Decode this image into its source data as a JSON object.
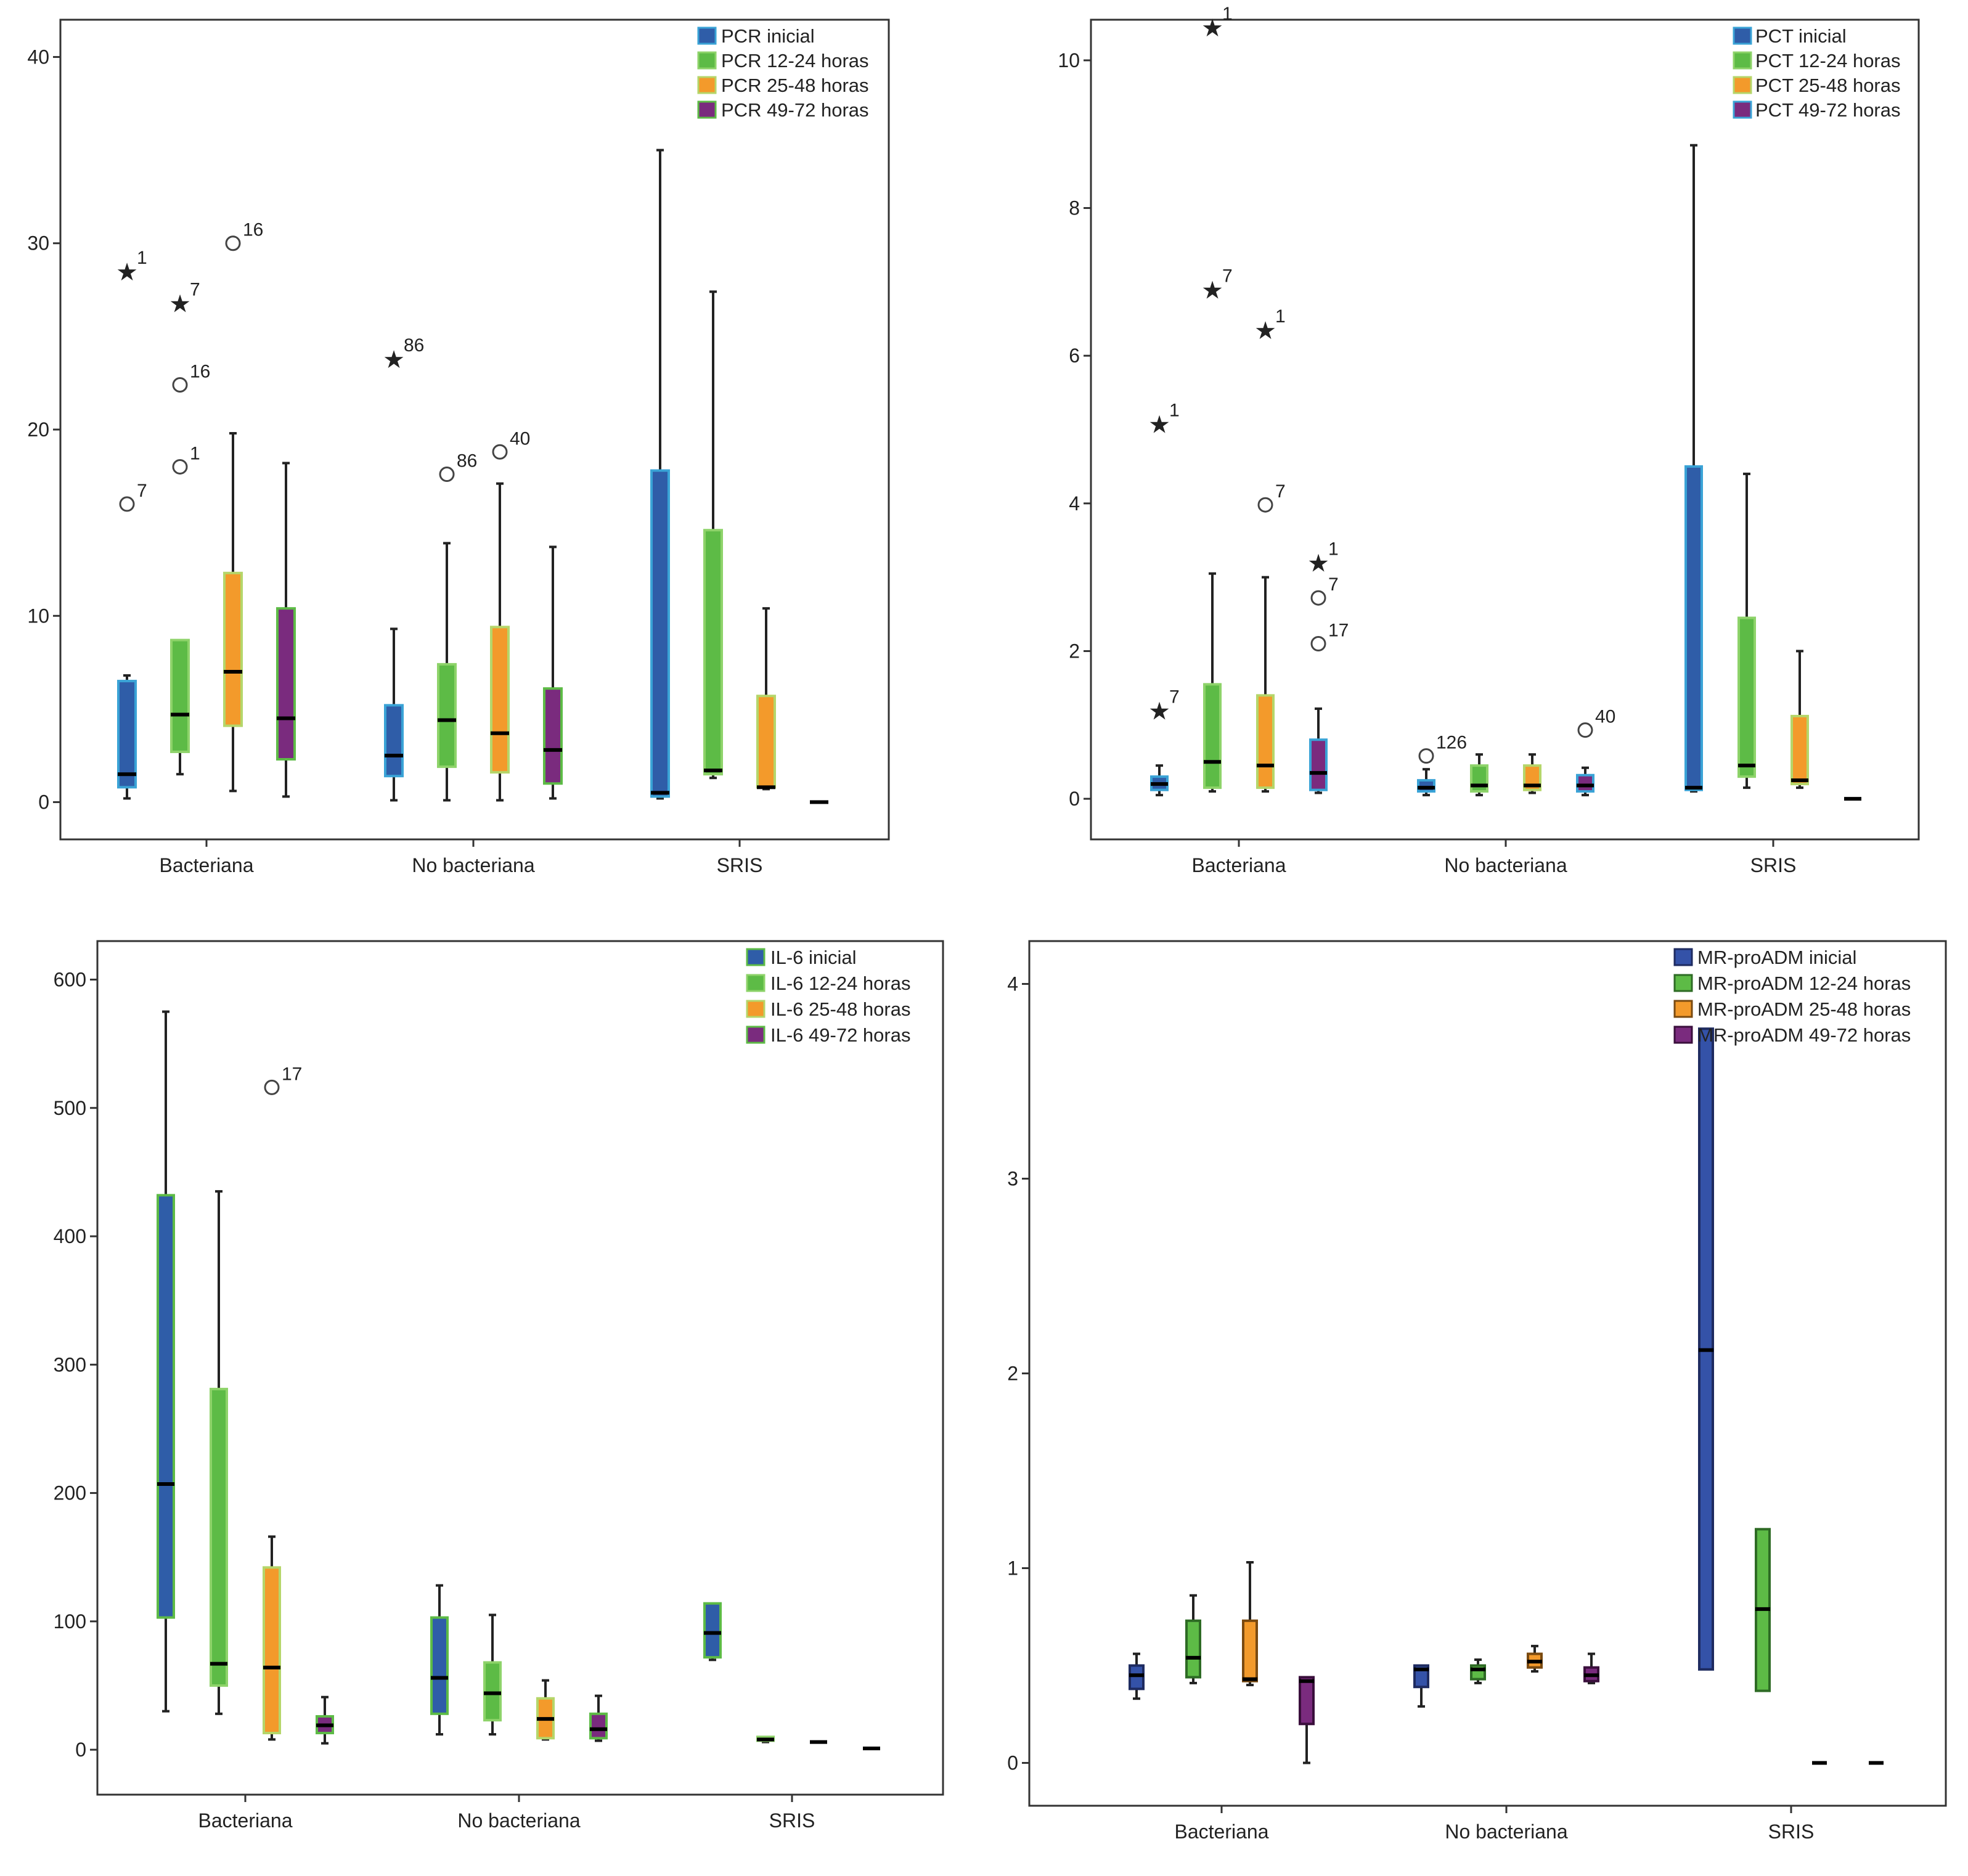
{
  "chart_data": [
    {
      "type": "boxplot",
      "categories": [
        "Bacteriana",
        "No bacteriana",
        "SRIS"
      ],
      "ylim": [
        -2,
        42
      ],
      "yticks": [
        0,
        10,
        20,
        30,
        40
      ],
      "legend_position": "top-right",
      "series": [
        {
          "name": "PCR inicial",
          "color": "#2F5DA8",
          "border": "#3AA3D6",
          "boxes": [
            {
              "category": "Bacteriana",
              "min": 0.2,
              "q1": 0.8,
              "median": 1.5,
              "q3": 6.5,
              "max": 6.8
            },
            {
              "category": "No bacteriana",
              "min": 0.1,
              "q1": 1.4,
              "median": 2.5,
              "q3": 5.2,
              "max": 9.3
            },
            {
              "category": "SRIS",
              "min": 0.2,
              "q1": 0.3,
              "median": 0.5,
              "q3": 17.8,
              "max": 35.0
            }
          ]
        },
        {
          "name": "PCR 12-24 horas",
          "color": "#5DBB46",
          "border": "#8ED36A",
          "boxes": [
            {
              "category": "Bacteriana",
              "min": 1.5,
              "q1": 2.7,
              "median": 4.7,
              "q3": 8.7,
              "max": 8.7
            },
            {
              "category": "No bacteriana",
              "min": 0.1,
              "q1": 1.9,
              "median": 4.4,
              "q3": 7.4,
              "max": 13.9
            },
            {
              "category": "SRIS",
              "min": 1.3,
              "q1": 1.5,
              "median": 1.7,
              "q3": 14.6,
              "max": 27.4
            }
          ]
        },
        {
          "name": "PCR 25-48 horas",
          "color": "#F39A2B",
          "border": "#B5D66A",
          "boxes": [
            {
              "category": "Bacteriana",
              "min": 0.6,
              "q1": 4.1,
              "median": 7.0,
              "q3": 12.3,
              "max": 19.8
            },
            {
              "category": "No bacteriana",
              "min": 0.1,
              "q1": 1.6,
              "median": 3.7,
              "q3": 9.4,
              "max": 17.1
            },
            {
              "category": "SRIS",
              "min": 0.7,
              "q1": 0.8,
              "median": 0.8,
              "q3": 5.7,
              "max": 10.4
            }
          ]
        },
        {
          "name": "PCR 49-72 horas",
          "color": "#7A2B7E",
          "border": "#5DBB46",
          "boxes": [
            {
              "category": "Bacteriana",
              "min": 0.3,
              "q1": 2.3,
              "median": 4.5,
              "q3": 10.4,
              "max": 18.2
            },
            {
              "category": "No bacteriana",
              "min": 0.2,
              "q1": 1.0,
              "median": 2.8,
              "q3": 6.1,
              "max": 13.7
            },
            {
              "category": "SRIS",
              "min": 0.0,
              "q1": 0.0,
              "median": 0.0,
              "q3": 0.0,
              "max": 0.0
            }
          ]
        }
      ],
      "outliers": [
        {
          "series": 0,
          "category": "Bacteriana",
          "value": 28.5,
          "label": "1",
          "marker": "star"
        },
        {
          "series": 0,
          "category": "Bacteriana",
          "value": 16.0,
          "label": "7",
          "marker": "circle"
        },
        {
          "series": 1,
          "category": "Bacteriana",
          "value": 26.8,
          "label": "7",
          "marker": "star"
        },
        {
          "series": 1,
          "category": "Bacteriana",
          "value": 22.4,
          "label": "16",
          "marker": "circle"
        },
        {
          "series": 1,
          "category": "Bacteriana",
          "value": 18.0,
          "label": "1",
          "marker": "circle"
        },
        {
          "series": 2,
          "category": "Bacteriana",
          "value": 30.0,
          "label": "16",
          "marker": "circle"
        },
        {
          "series": 0,
          "category": "No bacteriana",
          "value": 23.8,
          "label": "86",
          "marker": "star"
        },
        {
          "series": 1,
          "category": "No bacteriana",
          "value": 17.6,
          "label": "86",
          "marker": "circle"
        },
        {
          "series": 2,
          "category": "No bacteriana",
          "value": 18.8,
          "label": "40",
          "marker": "circle"
        }
      ]
    },
    {
      "type": "boxplot",
      "categories": [
        "Bacteriana",
        "No bacteriana",
        "SRIS"
      ],
      "ylim": [
        -0.55,
        10.55
      ],
      "yticks": [
        0,
        2,
        4,
        6,
        8,
        10
      ],
      "legend_position": "top-right",
      "series": [
        {
          "name": "PCT inicial",
          "color": "#2F5DA8",
          "border": "#3AA3D6",
          "boxes": [
            {
              "category": "Bacteriana",
              "min": 0.05,
              "q1": 0.12,
              "median": 0.2,
              "q3": 0.3,
              "max": 0.45
            },
            {
              "category": "No bacteriana",
              "min": 0.05,
              "q1": 0.1,
              "median": 0.15,
              "q3": 0.25,
              "max": 0.4
            },
            {
              "category": "SRIS",
              "min": 0.1,
              "q1": 0.12,
              "median": 0.15,
              "q3": 4.5,
              "max": 8.85
            }
          ]
        },
        {
          "name": "PCT 12-24 horas",
          "color": "#5DBB46",
          "border": "#8ED36A",
          "boxes": [
            {
              "category": "Bacteriana",
              "min": 0.1,
              "q1": 0.15,
              "median": 0.5,
              "q3": 1.55,
              "max": 3.05
            },
            {
              "category": "No bacteriana",
              "min": 0.05,
              "q1": 0.1,
              "median": 0.18,
              "q3": 0.45,
              "max": 0.6
            },
            {
              "category": "SRIS",
              "min": 0.15,
              "q1": 0.3,
              "median": 0.45,
              "q3": 2.45,
              "max": 4.4
            }
          ]
        },
        {
          "name": "PCT 25-48 horas",
          "color": "#F39A2B",
          "border": "#B5D66A",
          "boxes": [
            {
              "category": "Bacteriana",
              "min": 0.1,
              "q1": 0.15,
              "median": 0.45,
              "q3": 1.4,
              "max": 3.0
            },
            {
              "category": "No bacteriana",
              "min": 0.08,
              "q1": 0.12,
              "median": 0.18,
              "q3": 0.45,
              "max": 0.6
            },
            {
              "category": "SRIS",
              "min": 0.15,
              "q1": 0.2,
              "median": 0.25,
              "q3": 1.12,
              "max": 2.0
            }
          ]
        },
        {
          "name": "PCT 49-72 horas",
          "color": "#7A2B7E",
          "border": "#3AA3D6",
          "boxes": [
            {
              "category": "Bacteriana",
              "min": 0.08,
              "q1": 0.12,
              "median": 0.35,
              "q3": 0.8,
              "max": 1.22
            },
            {
              "category": "No bacteriana",
              "min": 0.05,
              "q1": 0.1,
              "median": 0.18,
              "q3": 0.32,
              "max": 0.42
            },
            {
              "category": "SRIS",
              "min": 0.0,
              "q1": 0.0,
              "median": 0.0,
              "q3": 0.0,
              "max": 0.0
            }
          ]
        }
      ],
      "outliers": [
        {
          "series": 0,
          "category": "Bacteriana",
          "value": 5.08,
          "label": "1",
          "marker": "star"
        },
        {
          "series": 0,
          "category": "Bacteriana",
          "value": 1.2,
          "label": "7",
          "marker": "star"
        },
        {
          "series": 1,
          "category": "Bacteriana",
          "value": 10.45,
          "label": "1",
          "marker": "star"
        },
        {
          "series": 1,
          "category": "Bacteriana",
          "value": 6.9,
          "label": "7",
          "marker": "star"
        },
        {
          "series": 2,
          "category": "Bacteriana",
          "value": 6.35,
          "label": "1",
          "marker": "star"
        },
        {
          "series": 2,
          "category": "Bacteriana",
          "value": 3.98,
          "label": "7",
          "marker": "circle"
        },
        {
          "series": 3,
          "category": "Bacteriana",
          "value": 3.2,
          "label": "1",
          "marker": "star"
        },
        {
          "series": 3,
          "category": "Bacteriana",
          "value": 2.72,
          "label": "7",
          "marker": "circle"
        },
        {
          "series": 3,
          "category": "Bacteriana",
          "value": 2.1,
          "label": "17",
          "marker": "circle"
        },
        {
          "series": 0,
          "category": "No bacteriana",
          "value": 0.58,
          "label": "126",
          "marker": "circle"
        },
        {
          "series": 3,
          "category": "No bacteriana",
          "value": 0.93,
          "label": "40",
          "marker": "circle"
        }
      ]
    },
    {
      "type": "boxplot",
      "categories": [
        "Bacteriana",
        "No bacteriana",
        "SRIS"
      ],
      "ylim": [
        -35,
        630
      ],
      "yticks": [
        0,
        100,
        200,
        300,
        400,
        500,
        600
      ],
      "legend_position": "top-right",
      "series": [
        {
          "name": "IL-6 inicial",
          "color": "#2F5DA8",
          "border": "#5DBB46",
          "boxes": [
            {
              "category": "Bacteriana",
              "min": 30,
              "q1": 103,
              "median": 207,
              "q3": 432,
              "max": 575
            },
            {
              "category": "No bacteriana",
              "min": 12,
              "q1": 28,
              "median": 56,
              "q3": 103,
              "max": 128
            },
            {
              "category": "SRIS",
              "min": 70,
              "q1": 72,
              "median": 91,
              "q3": 114,
              "max": 114
            }
          ]
        },
        {
          "name": "IL-6 12-24 horas",
          "color": "#5DBB46",
          "border": "#8ED36A",
          "boxes": [
            {
              "category": "Bacteriana",
              "min": 28,
              "q1": 50,
              "median": 67,
              "q3": 281,
              "max": 435
            },
            {
              "category": "No bacteriana",
              "min": 12,
              "q1": 23,
              "median": 44,
              "q3": 68,
              "max": 105
            },
            {
              "category": "SRIS",
              "min": 6,
              "q1": 7,
              "median": 8,
              "q3": 10,
              "max": 10
            }
          ]
        },
        {
          "name": "IL-6 25-48 horas",
          "color": "#F39A2B",
          "border": "#B5D66A",
          "boxes": [
            {
              "category": "Bacteriana",
              "min": 8,
              "q1": 13,
              "median": 64,
              "q3": 142,
              "max": 166
            },
            {
              "category": "No bacteriana",
              "min": 8,
              "q1": 9,
              "median": 24,
              "q3": 40,
              "max": 54
            },
            {
              "category": "SRIS",
              "min": 6,
              "q1": 6,
              "median": 6,
              "q3": 6,
              "max": 6
            }
          ]
        },
        {
          "name": "IL-6 49-72 horas",
          "color": "#7A2B7E",
          "border": "#5DBB46",
          "boxes": [
            {
              "category": "Bacteriana",
              "min": 5,
              "q1": 13,
              "median": 19,
              "q3": 26,
              "max": 41
            },
            {
              "category": "No bacteriana",
              "min": 7,
              "q1": 9,
              "median": 16,
              "q3": 28,
              "max": 42
            },
            {
              "category": "SRIS",
              "min": 1,
              "q1": 1,
              "median": 1,
              "q3": 1,
              "max": 1
            }
          ]
        }
      ],
      "outliers": [
        {
          "series": 2,
          "category": "Bacteriana",
          "value": 516,
          "label": "17",
          "marker": "circle"
        }
      ]
    },
    {
      "type": "boxplot",
      "categories": [
        "Bacteriana",
        "No bacteriana",
        "SRIS"
      ],
      "ylim": [
        -0.22,
        4.22
      ],
      "yticks": [
        0,
        1,
        2,
        3,
        4
      ],
      "legend_position": "top-right",
      "series": [
        {
          "name": "MR-proADM inicial",
          "color": "#3452A8",
          "border": "#1E2B60",
          "boxes": [
            {
              "category": "Bacteriana",
              "min": 0.33,
              "q1": 0.38,
              "median": 0.45,
              "q3": 0.5,
              "max": 0.56
            },
            {
              "category": "No bacteriana",
              "min": 0.29,
              "q1": 0.39,
              "median": 0.48,
              "q3": 0.5,
              "max": 0.5
            },
            {
              "category": "SRIS",
              "min": 0.48,
              "q1": 0.48,
              "median": 2.12,
              "q3": 3.77,
              "max": 3.77
            }
          ]
        },
        {
          "name": "MR-proADM 12-24 horas",
          "color": "#5DBB46",
          "border": "#2E6B25",
          "boxes": [
            {
              "category": "Bacteriana",
              "min": 0.41,
              "q1": 0.44,
              "median": 0.54,
              "q3": 0.73,
              "max": 0.86
            },
            {
              "category": "No bacteriana",
              "min": 0.41,
              "q1": 0.43,
              "median": 0.48,
              "q3": 0.5,
              "max": 0.53
            },
            {
              "category": "SRIS",
              "min": 0.37,
              "q1": 0.37,
              "median": 0.79,
              "q3": 1.2,
              "max": 1.2
            }
          ]
        },
        {
          "name": "MR-proADM 25-48 horas",
          "color": "#F39A2B",
          "border": "#7A4A10",
          "boxes": [
            {
              "category": "Bacteriana",
              "min": 0.4,
              "q1": 0.42,
              "median": 0.43,
              "q3": 0.73,
              "max": 1.03
            },
            {
              "category": "No bacteriana",
              "min": 0.47,
              "q1": 0.49,
              "median": 0.52,
              "q3": 0.56,
              "max": 0.6
            },
            {
              "category": "SRIS",
              "min": 0.0,
              "q1": 0.0,
              "median": 0.0,
              "q3": 0.0,
              "max": 0.0
            }
          ]
        },
        {
          "name": "MR-proADM 49-72 horas",
          "color": "#7A2B7E",
          "border": "#3A0F3C",
          "boxes": [
            {
              "category": "Bacteriana",
              "min": 0.0,
              "q1": 0.2,
              "median": 0.42,
              "q3": 0.44,
              "max": 0.44
            },
            {
              "category": "No bacteriana",
              "min": 0.41,
              "q1": 0.42,
              "median": 0.45,
              "q3": 0.49,
              "max": 0.56
            },
            {
              "category": "SRIS",
              "min": 0.0,
              "q1": 0.0,
              "median": 0.0,
              "q3": 0.0,
              "max": 0.0
            }
          ]
        }
      ],
      "outliers": []
    }
  ]
}
